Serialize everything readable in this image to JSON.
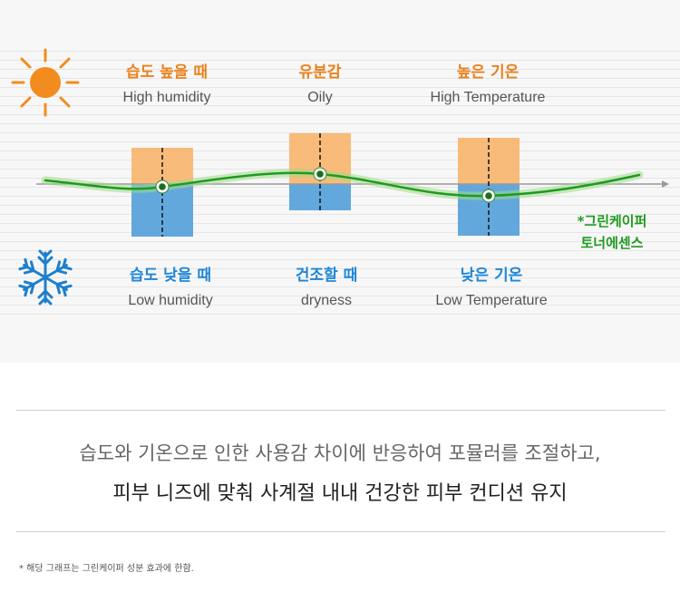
{
  "chart": {
    "top_labels": [
      {
        "ko": "습도 높을 때",
        "en": "High humidity"
      },
      {
        "ko": "유분감",
        "en": "Oily"
      },
      {
        "ko": "높은 기온",
        "en": "High Temperature"
      }
    ],
    "bottom_labels": [
      {
        "ko": "습도 낮을 때",
        "en": "Low humidity"
      },
      {
        "ko": "건조할 때",
        "en": "dryness"
      },
      {
        "ko": "낮은 기온",
        "en": "Low Temperature"
      }
    ],
    "product_line1": "*그린케이퍼",
    "product_line2": "토너에센스",
    "icons": {
      "top": "sun-icon",
      "bottom": "snowflake-icon"
    },
    "colors": {
      "warm": "#f7b46a",
      "cool": "#5ba3da",
      "curve": "#1f9a1f",
      "warm_text": "#e8821e",
      "cool_text": "#1f86d6"
    }
  },
  "description": {
    "line1": "습도와 기온으로 인한 사용감 차이에 반응하여 포뮬러를 조절하고,",
    "line2": "피부 니즈에 맞춰 사계절 내내 건강한 피부 컨디션 유지"
  },
  "footnote": "* 해당 그래프는 그린케이퍼 성분 효과에 한함."
}
